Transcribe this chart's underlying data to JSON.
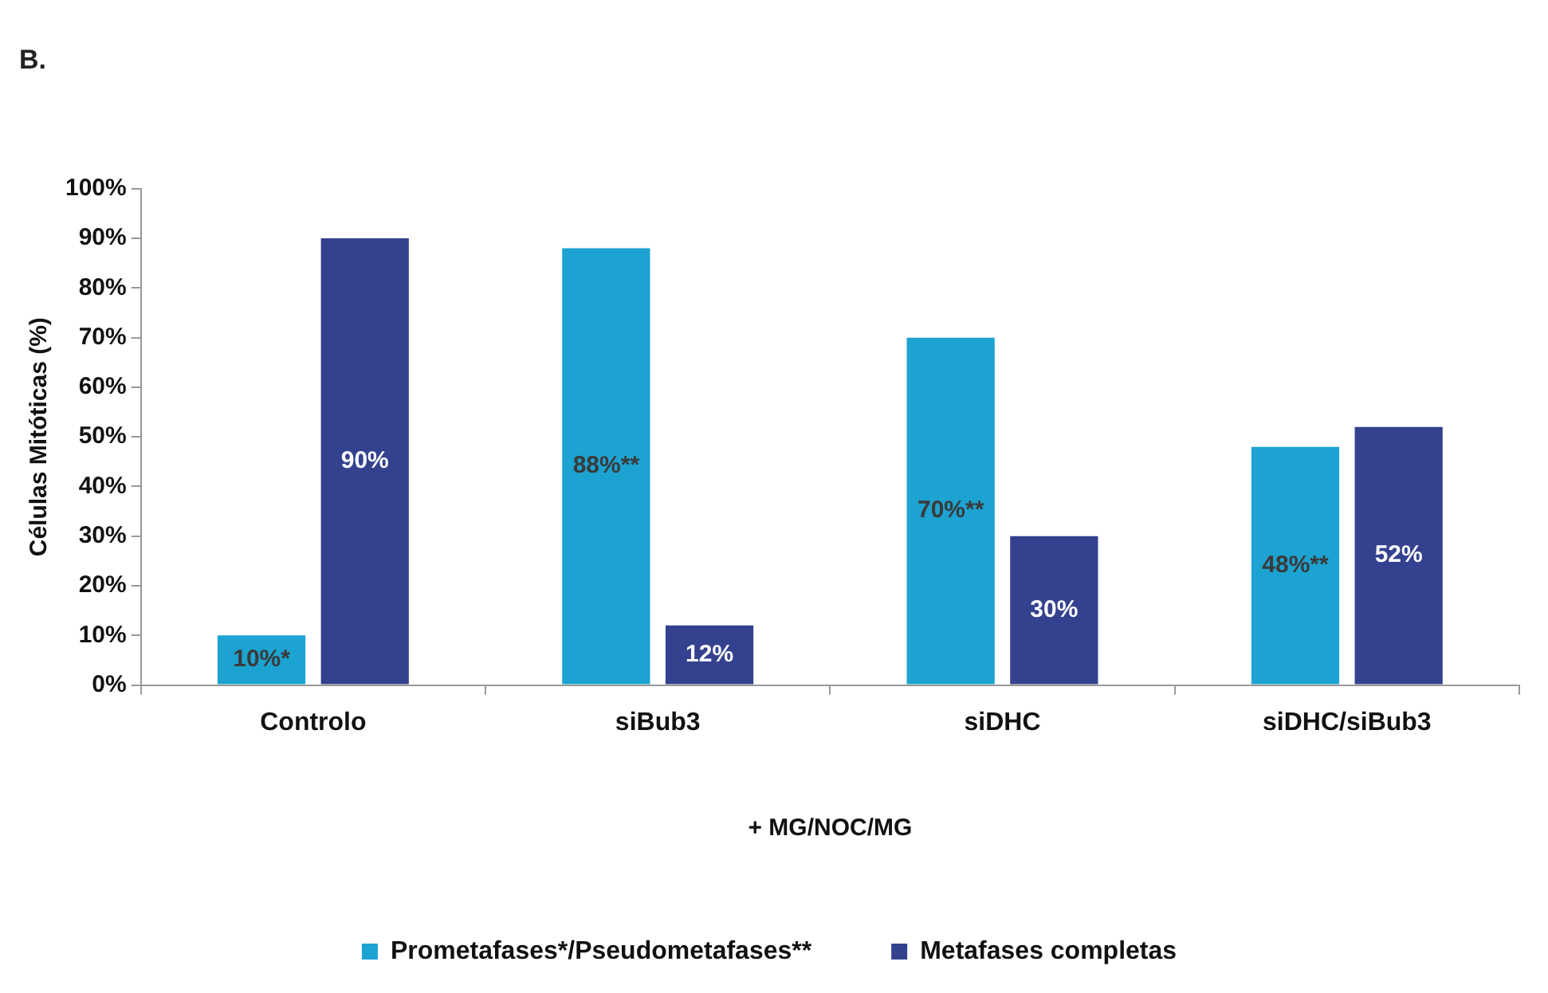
{
  "chart_data": {
    "type": "bar",
    "title": "B.",
    "xlabel": "+ MG/NOC/MG",
    "ylabel": "Células Mitóticas (%)",
    "categories": [
      "Controlo",
      "siBub3",
      "siDHC",
      "siDHC/siBub3"
    ],
    "series": [
      {
        "name": "Prometafases*/Pseudometafases**",
        "color": "#1ca3d1",
        "values": [
          10,
          88,
          70,
          48
        ],
        "value_labels": [
          "10%*",
          "88%**",
          "70%**",
          "48%**"
        ]
      },
      {
        "name": "Metafases completas",
        "color": "#34418e",
        "values": [
          90,
          12,
          30,
          52
        ],
        "value_labels": [
          "90%",
          "12%",
          "30%",
          "52%"
        ]
      }
    ],
    "ylim": [
      0,
      100
    ],
    "yticks": [
      {
        "value": 0,
        "label": "0%"
      },
      {
        "value": 10,
        "label": "10%"
      },
      {
        "value": 20,
        "label": "20%"
      },
      {
        "value": 30,
        "label": "30%"
      },
      {
        "value": 40,
        "label": "40%"
      },
      {
        "value": 50,
        "label": "50%"
      },
      {
        "value": 60,
        "label": "60%"
      },
      {
        "value": 70,
        "label": "70%"
      },
      {
        "value": 80,
        "label": "80%"
      },
      {
        "value": 90,
        "label": "90%"
      },
      {
        "value": 100,
        "label": "100%"
      }
    ],
    "grid": false,
    "legend": "bottom"
  }
}
